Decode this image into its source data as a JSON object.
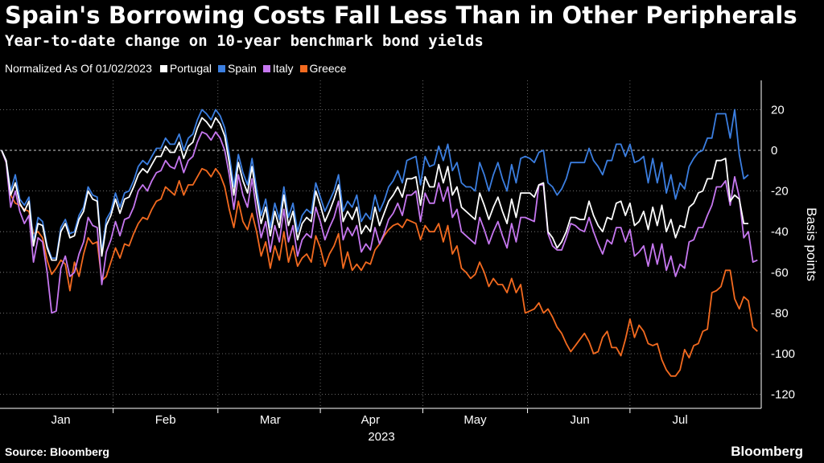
{
  "title": "Spain's Borrowing Costs Fall Less Than in Other Peripherals",
  "subtitle": "Year-to-date change on 10-year benchmark bond yields",
  "legend_note": "Normalized As Of 01/02/2023",
  "source": "Source: Bloomberg",
  "brand": "Bloomberg",
  "chart_data": {
    "type": "line",
    "xlabel": "2023",
    "ylabel": "Basis points",
    "ylim": [
      -125,
      30
    ],
    "yticks": [
      20,
      0,
      -20,
      -40,
      -60,
      -80,
      -100,
      -120
    ],
    "grid": true,
    "legend_position": "top-left",
    "x_ticks": [
      {
        "label": "Jan",
        "index": 13
      },
      {
        "label": "Feb",
        "index": 36
      },
      {
        "label": "Mar",
        "index": 59
      },
      {
        "label": "Apr",
        "index": 81
      },
      {
        "label": "May",
        "index": 104
      },
      {
        "label": "Jun",
        "index": 127
      },
      {
        "label": "Jul",
        "index": 149
      }
    ],
    "series": [
      {
        "name": "Portugal",
        "color": "#ffffff",
        "values": [
          0,
          -5,
          -22,
          -16,
          -26,
          -30,
          -25,
          -47,
          -36,
          -37,
          -48,
          -54,
          -54,
          -40,
          -36,
          -43,
          -42,
          -34,
          -30,
          -20,
          -24,
          -25,
          -52,
          -37,
          -32,
          -24,
          -31,
          -24,
          -23,
          -18,
          -12,
          -9,
          -11,
          -7,
          -3,
          -3,
          2,
          -1,
          -1,
          4,
          -4,
          2,
          4,
          11,
          16,
          14,
          11,
          16,
          13,
          7,
          -6,
          -22,
          -6,
          -15,
          -21,
          -8,
          -23,
          -36,
          -28,
          -42,
          -30,
          -38,
          -22,
          -37,
          -30,
          -44,
          -36,
          -33,
          -35,
          -20,
          -27,
          -35,
          -30,
          -24,
          -17,
          -35,
          -30,
          -34,
          -28,
          -41,
          -37,
          -40,
          -28,
          -37,
          -31,
          -25,
          -22,
          -18,
          -23,
          -14,
          -14,
          -13,
          -27,
          -13,
          -18,
          -18,
          -7,
          -16,
          -8,
          -22,
          -18,
          -28,
          -30,
          -32,
          -34,
          -21,
          -27,
          -34,
          -28,
          -23,
          -30,
          -36,
          -24,
          -33,
          -21,
          -21,
          -21,
          -23,
          -17,
          -16,
          -40,
          -43,
          -48,
          -45,
          -40,
          -33,
          -33,
          -34,
          -34,
          -25,
          -32,
          -37,
          -40,
          -33,
          -34,
          -26,
          -25,
          -32,
          -26,
          -37,
          -35,
          -30,
          -39,
          -28,
          -37,
          -27,
          -40,
          -34,
          -43,
          -37,
          -38,
          -28,
          -26,
          -21,
          -20,
          -14,
          -14,
          -5,
          -5,
          -4,
          -25,
          -22,
          -24,
          -36,
          -36
        ]
      },
      {
        "name": "Spain",
        "color": "#3b7ee0",
        "values": [
          0,
          -5,
          -20,
          -12,
          -24,
          -27,
          -23,
          -45,
          -33,
          -35,
          -47,
          -53,
          -53,
          -38,
          -34,
          -41,
          -40,
          -32,
          -28,
          -18,
          -22,
          -23,
          -50,
          -34,
          -30,
          -21,
          -28,
          -21,
          -20,
          -15,
          -8,
          -5,
          -7,
          -3,
          1,
          1,
          6,
          3,
          3,
          8,
          0,
          6,
          8,
          15,
          20,
          18,
          15,
          20,
          17,
          11,
          -2,
          -18,
          -2,
          -11,
          -17,
          -4,
          -19,
          -32,
          -24,
          -38,
          -26,
          -34,
          -18,
          -33,
          -26,
          -40,
          -32,
          -29,
          -31,
          -16,
          -23,
          -30,
          -25,
          -20,
          -12,
          -30,
          -25,
          -28,
          -22,
          -35,
          -31,
          -34,
          -22,
          -30,
          -25,
          -18,
          -15,
          -10,
          -16,
          -5,
          -4,
          -3,
          -17,
          -3,
          -8,
          -7,
          2,
          -5,
          3,
          -10,
          -6,
          -16,
          -18,
          -18,
          -20,
          -6,
          -12,
          -20,
          -12,
          -6,
          -14,
          -20,
          -7,
          -16,
          -4,
          -3,
          -4,
          -6,
          -1,
          0,
          -16,
          -18,
          -22,
          -19,
          -14,
          -6,
          -6,
          -6,
          -6,
          1,
          -5,
          -8,
          -12,
          -5,
          -5,
          3,
          3,
          -3,
          3,
          -6,
          -5,
          -3,
          -16,
          -4,
          -16,
          -6,
          -21,
          -12,
          -24,
          -16,
          -19,
          -8,
          -4,
          -1,
          0,
          6,
          6,
          18,
          18,
          18,
          6,
          20,
          -2,
          -14,
          -12
        ]
      },
      {
        "name": "Italy",
        "color": "#c677f0",
        "values": [
          0,
          -6,
          -28,
          -20,
          -30,
          -36,
          -32,
          -55,
          -43,
          -45,
          -60,
          -80,
          -79,
          -58,
          -52,
          -62,
          -60,
          -51,
          -45,
          -33,
          -37,
          -38,
          -66,
          -50,
          -44,
          -35,
          -42,
          -34,
          -33,
          -28,
          -20,
          -17,
          -20,
          -15,
          -11,
          -10,
          -5,
          -8,
          -9,
          -3,
          -11,
          -5,
          -3,
          4,
          9,
          8,
          5,
          9,
          6,
          0,
          -12,
          -29,
          -12,
          -22,
          -28,
          -14,
          -30,
          -43,
          -35,
          -50,
          -37,
          -45,
          -29,
          -45,
          -37,
          -52,
          -44,
          -41,
          -43,
          -28,
          -35,
          -44,
          -38,
          -33,
          -25,
          -44,
          -38,
          -42,
          -37,
          -50,
          -46,
          -49,
          -38,
          -46,
          -41,
          -34,
          -31,
          -26,
          -32,
          -22,
          -22,
          -20,
          -35,
          -21,
          -26,
          -26,
          -16,
          -25,
          -18,
          -33,
          -29,
          -40,
          -42,
          -44,
          -46,
          -33,
          -39,
          -46,
          -40,
          -35,
          -42,
          -48,
          -36,
          -45,
          -33,
          -33,
          -34,
          -35,
          -17,
          -17,
          -41,
          -47,
          -49,
          -49,
          -43,
          -36,
          -37,
          -39,
          -40,
          -33,
          -40,
          -46,
          -51,
          -44,
          -46,
          -38,
          -38,
          -45,
          -39,
          -52,
          -50,
          -47,
          -57,
          -46,
          -56,
          -46,
          -59,
          -52,
          -62,
          -56,
          -58,
          -45,
          -44,
          -38,
          -38,
          -32,
          -27,
          -18,
          -18,
          -15,
          -27,
          -13,
          -23,
          -43,
          -40,
          -55,
          -54
        ]
      },
      {
        "name": "Greece",
        "color": "#f36a1f",
        "values": [
          0,
          -6,
          -22,
          -26,
          -27,
          -29,
          -30,
          -41,
          -40,
          -43,
          -54,
          -61,
          -58,
          -54,
          -56,
          -69,
          -55,
          -62,
          -51,
          -43,
          -46,
          -45,
          -64,
          -62,
          -55,
          -48,
          -53,
          -46,
          -47,
          -41,
          -36,
          -33,
          -34,
          -29,
          -25,
          -24,
          -18,
          -20,
          -22,
          -15,
          -22,
          -17,
          -17,
          -13,
          -9,
          -10,
          -13,
          -9,
          -12,
          -18,
          -29,
          -38,
          -25,
          -35,
          -39,
          -31,
          -40,
          -52,
          -45,
          -58,
          -47,
          -54,
          -40,
          -55,
          -47,
          -57,
          -53,
          -51,
          -55,
          -42,
          -48,
          -57,
          -51,
          -47,
          -41,
          -58,
          -50,
          -59,
          -56,
          -59,
          -55,
          -56,
          -49,
          -46,
          -42,
          -39,
          -37,
          -36,
          -38,
          -34,
          -35,
          -36,
          -44,
          -37,
          -40,
          -40,
          -36,
          -45,
          -37,
          -51,
          -47,
          -58,
          -60,
          -63,
          -61,
          -55,
          -60,
          -67,
          -63,
          -66,
          -66,
          -70,
          -63,
          -70,
          -66,
          -80,
          -79,
          -78,
          -75,
          -80,
          -78,
          -82,
          -87,
          -90,
          -95,
          -99,
          -96,
          -93,
          -90,
          -94,
          -100,
          -99,
          -92,
          -89,
          -97,
          -97,
          -101,
          -93,
          -83,
          -92,
          -86,
          -89,
          -95,
          -96,
          -95,
          -103,
          -108,
          -111,
          -111,
          -108,
          -98,
          -102,
          -96,
          -95,
          -89,
          -88,
          -70,
          -69,
          -67,
          -59,
          -59,
          -73,
          -78,
          -72,
          -74,
          -87,
          -89
        ]
      }
    ]
  }
}
